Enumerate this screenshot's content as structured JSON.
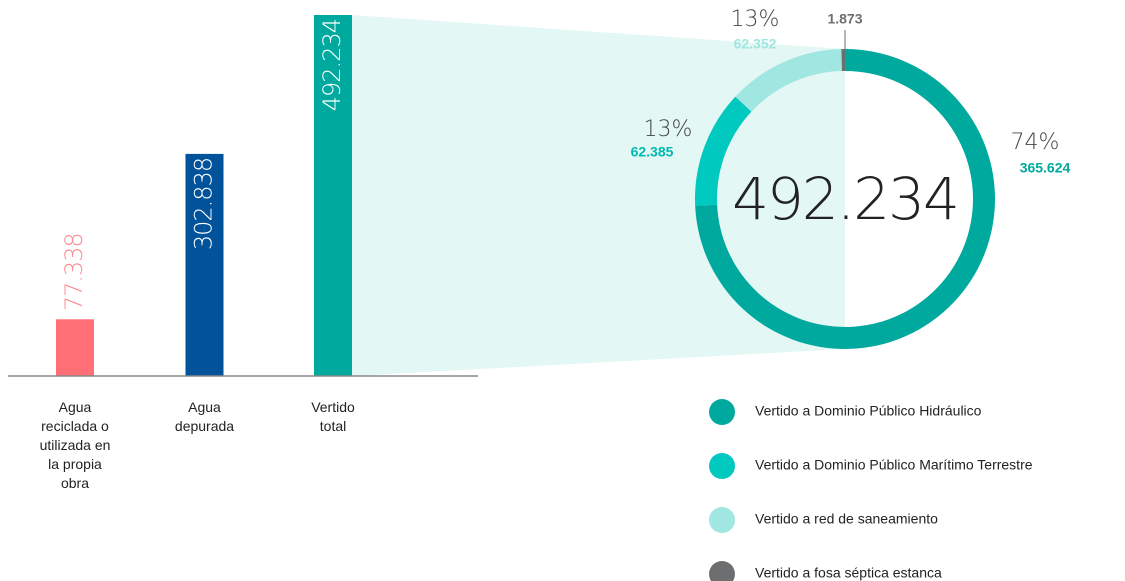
{
  "chart_data": [
    {
      "type": "bar",
      "categories": [
        "Agua reciclada o utilizada en la propia obra",
        "Agua depurada",
        "Vertido total"
      ],
      "values": [
        77338,
        302838,
        492234
      ],
      "value_labels": [
        "77.338",
        "302.838",
        "492.234"
      ],
      "colors": [
        "#ff6f75",
        "#00529b",
        "#00a99d"
      ],
      "ylim": [
        0,
        492234
      ]
    },
    {
      "type": "donut",
      "total": 492234,
      "total_label": "492.234",
      "categories": [
        "Vertido a Dominio Público Hidráulico",
        "Vertido a Dominio Público Marítimo Terrestre",
        "Vertido a red de saneamiento",
        "Vertido a fosa séptica estanca"
      ],
      "values": [
        365624,
        62385,
        62352,
        1873
      ],
      "value_labels": [
        "365.624",
        "62.385",
        "62.352",
        "1.873"
      ],
      "percent_labels": [
        "74%",
        "13%",
        "13%",
        null
      ],
      "colors": [
        "#00a99d",
        "#00c9c0",
        "#a0e6e1",
        "#6d6e70"
      ]
    }
  ]
}
